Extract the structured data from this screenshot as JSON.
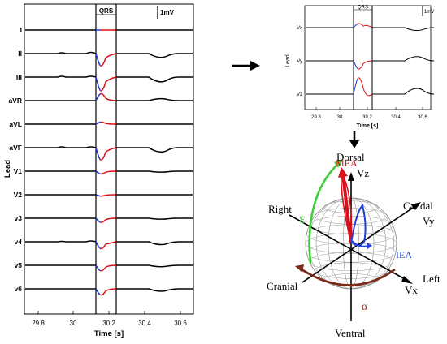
{
  "left_panel": {
    "qrs_label": "QRS",
    "scale_label": "1mV",
    "ylabel": "Lead",
    "xlabel": "Time [s]",
    "xticks": [
      "29.8",
      "30",
      "30.2",
      "30.4",
      "30.6"
    ],
    "leads": [
      "I",
      "II",
      "III",
      "aVR",
      "aVL",
      "aVF",
      "V1",
      "V2",
      "v3",
      "v4",
      "v5",
      "v6"
    ]
  },
  "vcg_panel": {
    "qrs_label": "QRS",
    "scale_label": "1mV",
    "ylabel": "Lead",
    "xlabel": "Time [s]",
    "xticks": [
      "29.8",
      "30",
      "30.2",
      "30.4",
      "30.6"
    ],
    "leads": [
      "Vx",
      "Vy",
      "Vz"
    ]
  },
  "sphere": {
    "axes": {
      "dorsal": "Dorsal",
      "vz": "Vz",
      "caudal": "Caudal",
      "vy": "Vy",
      "right": "Right",
      "left": "Left",
      "vx": "Vx",
      "cranial": "Cranial",
      "ventral": "Ventral"
    },
    "labels": {
      "mea": "MEA",
      "iea": "IEA",
      "epsilon": "ε",
      "alpha": "α"
    },
    "colors": {
      "mea": "#d8121b",
      "iea": "#1f3fd6",
      "epsilon": "#3fcf3a",
      "alpha": "#7b2a1a"
    }
  },
  "colors": {
    "trace": "#000000",
    "qrs_blue": "#1a34d6",
    "qrs_red": "#d8121b"
  }
}
